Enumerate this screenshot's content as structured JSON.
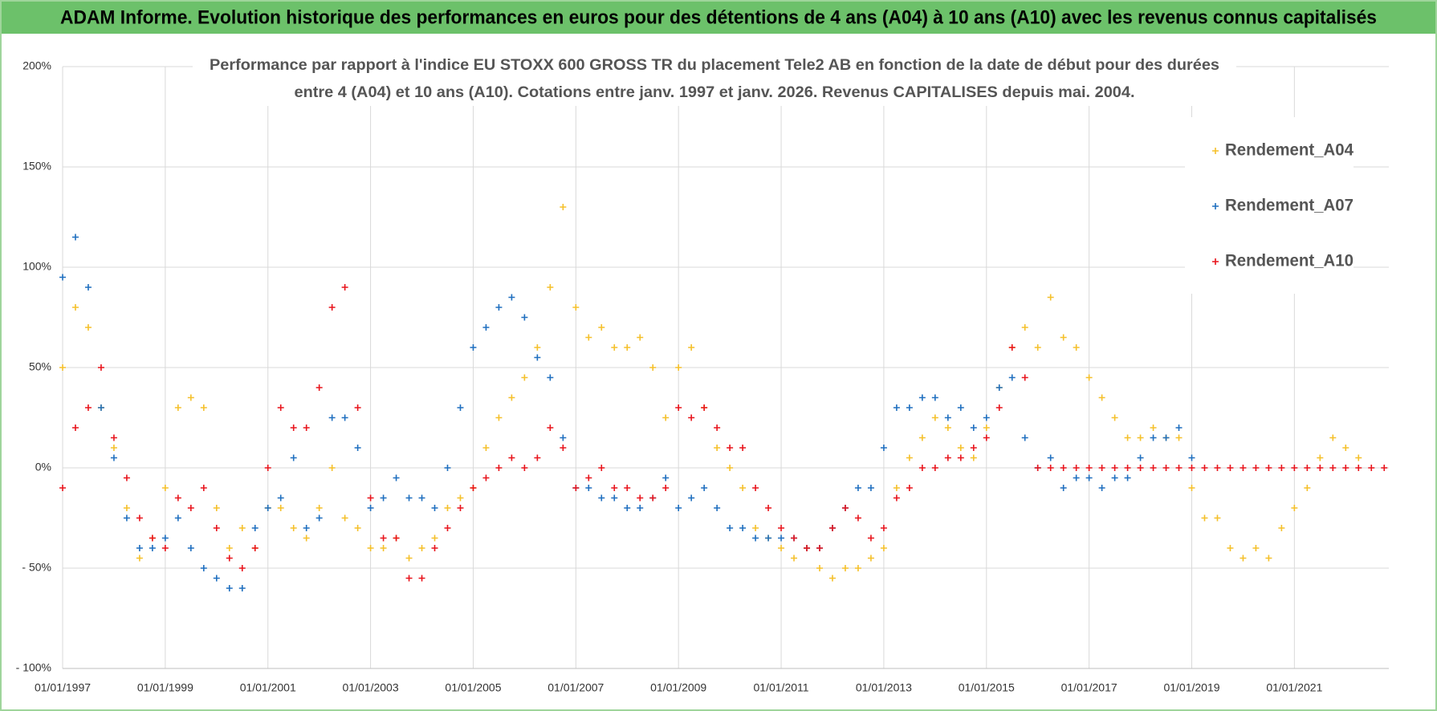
{
  "chart_data": {
    "type": "scatter",
    "title": "ADAM Informe. Evolution historique des performances en euros pour des détentions de 4 ans (A04) à 10 ans (A10) avec les revenus connus capitalisés",
    "subtitle": [
      "Performance par rapport à l'indice EU STOXX 600 GROSS TR  du placement Tele2 AB en fonction de la date de début pour des durées",
      "entre 4 (A04) et 10 ans (A10).  Cotations entre janv. 1997 et janv. 2026. Revenus CAPITALISES depuis mai. 2004."
    ],
    "xlim": [
      1997,
      2022.84
    ],
    "xticks": [
      {
        "value": 1997,
        "label": "01/01/1997"
      },
      {
        "value": 1999,
        "label": "01/01/1999"
      },
      {
        "value": 2001,
        "label": "01/01/2001"
      },
      {
        "value": 2003,
        "label": "01/01/2003"
      },
      {
        "value": 2005,
        "label": "01/01/2005"
      },
      {
        "value": 2007,
        "label": "01/01/2007"
      },
      {
        "value": 2009,
        "label": "01/01/2009"
      },
      {
        "value": 2011,
        "label": "01/01/2011"
      },
      {
        "value": 2013,
        "label": "01/01/2013"
      },
      {
        "value": 2015,
        "label": "01/01/2015"
      },
      {
        "value": 2017,
        "label": "01/01/2017"
      },
      {
        "value": 2019,
        "label": "01/01/2019"
      },
      {
        "value": 2021,
        "label": "01/01/2021"
      }
    ],
    "ylim": [
      -100,
      200
    ],
    "yticks": [
      {
        "value": -100,
        "label": "- 100%"
      },
      {
        "value": -50,
        "label": "- 50%"
      },
      {
        "value": 0,
        "label": "0%"
      },
      {
        "value": 50,
        "label": "50%"
      },
      {
        "value": 100,
        "label": "100%"
      },
      {
        "value": 150,
        "label": "150%"
      },
      {
        "value": 200,
        "label": "200%"
      }
    ],
    "grid": true,
    "legend": "upper right",
    "series": [
      {
        "name": "Rendement_A04",
        "color": "#f5c02a",
        "x": [
          1997,
          1997.25,
          1997.5,
          1997.75,
          1998,
          1998.25,
          1998.5,
          1998.75,
          1999,
          1999.25,
          1999.5,
          1999.75,
          2000,
          2000.25,
          2000.5,
          2000.75,
          2001,
          2001.25,
          2001.5,
          2001.75,
          2002,
          2002.25,
          2002.5,
          2002.75,
          2003,
          2003.25,
          2003.5,
          2003.75,
          2004,
          2004.25,
          2004.5,
          2004.75,
          2005,
          2005.25,
          2005.5,
          2005.75,
          2006,
          2006.25,
          2006.5,
          2006.75,
          2007,
          2007.25,
          2007.5,
          2007.75,
          2008,
          2008.25,
          2008.5,
          2008.75,
          2009,
          2009.25,
          2009.5,
          2009.75,
          2010,
          2010.25,
          2010.5,
          2010.75,
          2011,
          2011.25,
          2011.5,
          2011.75,
          2012,
          2012.25,
          2012.5,
          2012.75,
          2013,
          2013.25,
          2013.5,
          2013.75,
          2014,
          2014.25,
          2014.5,
          2014.75,
          2015,
          2015.25,
          2015.5,
          2015.75,
          2016,
          2016.25,
          2016.5,
          2016.75,
          2017,
          2017.25,
          2017.5,
          2017.75,
          2018,
          2018.25,
          2018.5,
          2018.75,
          2019,
          2019.25,
          2019.5,
          2019.75,
          2020,
          2020.25,
          2020.5,
          2020.75,
          2021,
          2021.25,
          2021.5,
          2021.75,
          2022,
          2022.25
        ],
        "values": [
          50,
          80,
          70,
          30,
          10,
          -20,
          -45,
          -35,
          -10,
          30,
          35,
          30,
          -20,
          -40,
          -30,
          -40,
          -20,
          -20,
          -30,
          -35,
          -20,
          0,
          -25,
          -30,
          -40,
          -40,
          -35,
          -45,
          -40,
          -35,
          -20,
          -15,
          -10,
          10,
          25,
          35,
          45,
          60,
          90,
          130,
          80,
          65,
          70,
          60,
          60,
          65,
          50,
          25,
          50,
          60,
          30,
          10,
          0,
          -10,
          -30,
          -35,
          -40,
          -45,
          -40,
          -50,
          -55,
          -50,
          -50,
          -45,
          -40,
          -10,
          5,
          15,
          25,
          20,
          10,
          5,
          20,
          40,
          60,
          70,
          60,
          85,
          65,
          60,
          45,
          35,
          25,
          15,
          15,
          20,
          15,
          15,
          -10,
          -25,
          -25,
          -40,
          -45,
          -40,
          -45,
          -30,
          -20,
          -10,
          5,
          15,
          10,
          5
        ]
      },
      {
        "name": "Rendement_A07",
        "color": "#1f6fbf",
        "x": [
          1997,
          1997.25,
          1997.5,
          1997.75,
          1998,
          1998.25,
          1998.5,
          1998.75,
          1999,
          1999.25,
          1999.5,
          1999.75,
          2000,
          2000.25,
          2000.5,
          2000.75,
          2001,
          2001.25,
          2001.5,
          2001.75,
          2002,
          2002.25,
          2002.5,
          2002.75,
          2003,
          2003.25,
          2003.5,
          2003.75,
          2004,
          2004.25,
          2004.5,
          2004.75,
          2005,
          2005.25,
          2005.5,
          2005.75,
          2006,
          2006.25,
          2006.5,
          2006.75,
          2007,
          2007.25,
          2007.5,
          2007.75,
          2008,
          2008.25,
          2008.5,
          2008.75,
          2009,
          2009.25,
          2009.5,
          2009.75,
          2010,
          2010.25,
          2010.5,
          2010.75,
          2011,
          2011.25,
          2011.5,
          2011.75,
          2012,
          2012.25,
          2012.5,
          2012.75,
          2013,
          2013.25,
          2013.5,
          2013.75,
          2014,
          2014.25,
          2014.5,
          2014.75,
          2015,
          2015.25,
          2015.5,
          2015.75,
          2016,
          2016.25,
          2016.5,
          2016.75,
          2017,
          2017.25,
          2017.5,
          2017.75,
          2018,
          2018.25,
          2018.5,
          2018.75,
          2019
        ],
        "values": [
          95,
          115,
          90,
          30,
          5,
          -25,
          -40,
          -40,
          -35,
          -25,
          -40,
          -50,
          -55,
          -60,
          -60,
          -30,
          -20,
          -15,
          5,
          -30,
          -25,
          25,
          25,
          10,
          -20,
          -15,
          -5,
          -15,
          -15,
          -20,
          0,
          30,
          60,
          70,
          80,
          85,
          75,
          55,
          45,
          15,
          -10,
          -10,
          -15,
          -15,
          -20,
          -20,
          -15,
          -5,
          -20,
          -15,
          -10,
          -20,
          -30,
          -30,
          -35,
          -35,
          -35,
          -35,
          -40,
          -40,
          -30,
          -20,
          -10,
          -10,
          10,
          30,
          30,
          35,
          35,
          25,
          30,
          20,
          25,
          40,
          45,
          15,
          0,
          5,
          -10,
          -5,
          -5,
          -10,
          -5,
          -5,
          5,
          15,
          15,
          20,
          5
        ]
      },
      {
        "name": "Rendement_A10",
        "color": "#e8141c",
        "x": [
          1997,
          1997.25,
          1997.5,
          1997.75,
          1998,
          1998.25,
          1998.5,
          1998.75,
          1999,
          1999.25,
          1999.5,
          1999.75,
          2000,
          2000.25,
          2000.5,
          2000.75,
          2001,
          2001.25,
          2001.5,
          2001.75,
          2002,
          2002.25,
          2002.5,
          2002.75,
          2003,
          2003.25,
          2003.5,
          2003.75,
          2004,
          2004.25,
          2004.5,
          2004.75,
          2005,
          2005.25,
          2005.5,
          2005.75,
          2006,
          2006.25,
          2006.5,
          2006.75,
          2007,
          2007.25,
          2007.5,
          2007.75,
          2008,
          2008.25,
          2008.5,
          2008.75,
          2009,
          2009.25,
          2009.5,
          2009.75,
          2010,
          2010.25,
          2010.5,
          2010.75,
          2011,
          2011.25,
          2011.5,
          2011.75,
          2012,
          2012.25,
          2012.5,
          2012.75,
          2013,
          2013.25,
          2013.5,
          2013.75,
          2014,
          2014.25,
          2014.5,
          2014.75,
          2015,
          2015.25,
          2015.5,
          2015.75,
          2016,
          2016.25,
          2016.5,
          2016.75,
          2017,
          2017.25,
          2017.5,
          2017.75,
          2018,
          2018.25,
          2018.5,
          2018.75,
          2019,
          2019.25,
          2019.5,
          2019.75,
          2020,
          2020.25,
          2020.5,
          2020.75,
          2021,
          2021.25,
          2021.5,
          2021.75,
          2022,
          2022.25,
          2022.5,
          2022.75
        ],
        "values": [
          -10,
          20,
          30,
          50,
          15,
          -5,
          -25,
          -35,
          -40,
          -15,
          -20,
          -10,
          -30,
          -45,
          -50,
          -40,
          0,
          30,
          20,
          20,
          40,
          80,
          90,
          30,
          -15,
          -35,
          -35,
          -55,
          -55,
          -40,
          -30,
          -20,
          -10,
          -5,
          0,
          5,
          0,
          5,
          20,
          10,
          -10,
          -5,
          0,
          -10,
          -10,
          -15,
          -15,
          -10,
          30,
          25,
          30,
          20,
          10,
          10,
          -10,
          -20,
          -30,
          -35,
          -40,
          -40,
          -30,
          -20,
          -25,
          -35,
          -30,
          -15,
          -10,
          0,
          0,
          5,
          5,
          10,
          15,
          30,
          60,
          45,
          0,
          0,
          0,
          0,
          0,
          0,
          0,
          0,
          0,
          0,
          0,
          0,
          0,
          0,
          0,
          0,
          0,
          0,
          0,
          0,
          0,
          0,
          0,
          0,
          0,
          0,
          0,
          0
        ]
      }
    ]
  }
}
